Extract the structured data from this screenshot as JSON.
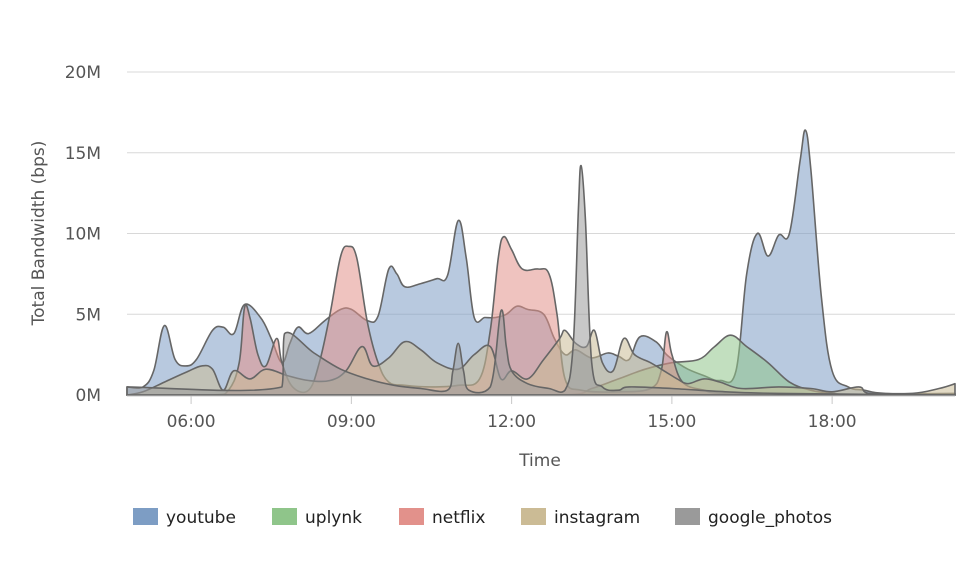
{
  "chart_data": {
    "type": "area",
    "title": "",
    "xlabel": "Time",
    "ylabel": "Total Bandwidth (bps)",
    "x_unit": "hours",
    "xlim": [
      4.8,
      20.3
    ],
    "ylim": [
      0,
      20
    ],
    "y_unit": "M",
    "x_ticks": [
      {
        "value": 6,
        "label": "06:00"
      },
      {
        "value": 9,
        "label": "09:00"
      },
      {
        "value": 12,
        "label": "12:00"
      },
      {
        "value": 15,
        "label": "15:00"
      },
      {
        "value": 18,
        "label": "18:00"
      }
    ],
    "y_ticks": [
      {
        "value": 0,
        "label": "0M"
      },
      {
        "value": 5,
        "label": "5M"
      },
      {
        "value": 10,
        "label": "10M"
      },
      {
        "value": 15,
        "label": "15M"
      },
      {
        "value": 20,
        "label": "20M"
      }
    ],
    "grid": true,
    "legend_position": "bottom",
    "series": [
      {
        "name": "youtube",
        "color": "#7d9dc4",
        "points": [
          [
            4.8,
            0.5
          ],
          [
            5.1,
            0.5
          ],
          [
            5.3,
            1.5
          ],
          [
            5.5,
            4.3
          ],
          [
            5.7,
            2.2
          ],
          [
            5.9,
            1.8
          ],
          [
            6.1,
            2.2
          ],
          [
            6.4,
            4.0
          ],
          [
            6.6,
            4.2
          ],
          [
            6.8,
            3.8
          ],
          [
            7.0,
            5.6
          ],
          [
            7.3,
            4.8
          ],
          [
            7.5,
            3.5
          ],
          [
            7.7,
            2.0
          ],
          [
            7.85,
            3.2
          ],
          [
            8.0,
            4.2
          ],
          [
            8.2,
            3.8
          ],
          [
            8.5,
            4.6
          ],
          [
            8.8,
            5.3
          ],
          [
            9.0,
            5.3
          ],
          [
            9.3,
            4.6
          ],
          [
            9.5,
            4.9
          ],
          [
            9.7,
            7.8
          ],
          [
            9.85,
            7.5
          ],
          [
            10.0,
            6.7
          ],
          [
            10.3,
            6.9
          ],
          [
            10.6,
            7.2
          ],
          [
            10.8,
            7.4
          ],
          [
            11.0,
            10.8
          ],
          [
            11.15,
            8.5
          ],
          [
            11.3,
            4.8
          ],
          [
            11.5,
            4.8
          ],
          [
            11.7,
            4.8
          ],
          [
            11.9,
            5.0
          ],
          [
            12.1,
            5.5
          ],
          [
            12.3,
            5.3
          ],
          [
            12.6,
            5.0
          ],
          [
            12.8,
            3.5
          ],
          [
            13.0,
            2.5
          ],
          [
            13.2,
            2.8
          ],
          [
            13.5,
            2.3
          ],
          [
            13.8,
            2.6
          ],
          [
            14.0,
            2.4
          ],
          [
            14.2,
            2.2
          ],
          [
            14.4,
            3.6
          ],
          [
            14.7,
            3.3
          ],
          [
            14.9,
            2.5
          ],
          [
            15.1,
            2.0
          ],
          [
            15.3,
            1.6
          ],
          [
            15.6,
            1.2
          ],
          [
            15.9,
            0.9
          ],
          [
            16.2,
            1.5
          ],
          [
            16.4,
            7.5
          ],
          [
            16.6,
            10.0
          ],
          [
            16.8,
            8.6
          ],
          [
            17.0,
            9.9
          ],
          [
            17.2,
            10.0
          ],
          [
            17.4,
            14.5
          ],
          [
            17.5,
            16.4
          ],
          [
            17.6,
            14.0
          ],
          [
            17.8,
            6.0
          ],
          [
            18.0,
            1.5
          ],
          [
            18.3,
            0.5
          ],
          [
            18.6,
            0.3
          ],
          [
            19.0,
            0.1
          ],
          [
            20.3,
            0.1
          ]
        ]
      },
      {
        "name": "uplynk",
        "color": "#8fc58a",
        "points": [
          [
            4.8,
            0.0
          ],
          [
            13.0,
            0.0
          ],
          [
            13.5,
            0.4
          ],
          [
            14.0,
            1.0
          ],
          [
            14.5,
            1.6
          ],
          [
            15.0,
            2.0
          ],
          [
            15.5,
            2.2
          ],
          [
            15.8,
            3.0
          ],
          [
            16.1,
            3.7
          ],
          [
            16.4,
            3.0
          ],
          [
            16.8,
            2.0
          ],
          [
            17.2,
            0.8
          ],
          [
            17.6,
            0.3
          ],
          [
            18.0,
            0.1
          ],
          [
            18.5,
            0.0
          ],
          [
            20.3,
            0.0
          ]
        ]
      },
      {
        "name": "netflix",
        "color": "#e2918b",
        "points": [
          [
            4.8,
            0.0
          ],
          [
            6.4,
            0.0
          ],
          [
            6.7,
            0.3
          ],
          [
            6.9,
            2.0
          ],
          [
            7.0,
            5.4
          ],
          [
            7.1,
            4.8
          ],
          [
            7.25,
            2.5
          ],
          [
            7.4,
            1.8
          ],
          [
            7.6,
            3.5
          ],
          [
            7.7,
            2.0
          ],
          [
            7.9,
            0.5
          ],
          [
            8.2,
            0.3
          ],
          [
            8.4,
            2.0
          ],
          [
            8.6,
            5.0
          ],
          [
            8.8,
            8.6
          ],
          [
            8.95,
            9.2
          ],
          [
            9.1,
            8.5
          ],
          [
            9.3,
            4.5
          ],
          [
            9.5,
            2.0
          ],
          [
            9.7,
            0.8
          ],
          [
            10.0,
            0.6
          ],
          [
            10.5,
            0.5
          ],
          [
            11.0,
            0.6
          ],
          [
            11.4,
            1.0
          ],
          [
            11.6,
            4.0
          ],
          [
            11.75,
            8.5
          ],
          [
            11.85,
            9.8
          ],
          [
            12.0,
            9.0
          ],
          [
            12.2,
            7.8
          ],
          [
            12.5,
            7.8
          ],
          [
            12.7,
            7.5
          ],
          [
            12.85,
            5.0
          ],
          [
            13.0,
            1.0
          ],
          [
            13.3,
            0.3
          ],
          [
            14.0,
            0.2
          ],
          [
            14.6,
            0.4
          ],
          [
            14.8,
            1.5
          ],
          [
            14.9,
            3.9
          ],
          [
            15.0,
            2.5
          ],
          [
            15.2,
            0.8
          ],
          [
            15.6,
            0.3
          ],
          [
            16.0,
            0.1
          ],
          [
            20.3,
            0.0
          ]
        ]
      },
      {
        "name": "instagram",
        "color": "#cbbb95",
        "points": [
          [
            4.8,
            0.0
          ],
          [
            5.1,
            0.2
          ],
          [
            5.5,
            0.8
          ],
          [
            5.9,
            1.4
          ],
          [
            6.2,
            1.8
          ],
          [
            6.4,
            1.6
          ],
          [
            6.6,
            0.3
          ],
          [
            6.8,
            1.5
          ],
          [
            7.1,
            1.0
          ],
          [
            7.4,
            1.6
          ],
          [
            7.8,
            1.2
          ],
          [
            8.2,
            0.9
          ],
          [
            8.6,
            0.9
          ],
          [
            8.9,
            1.5
          ],
          [
            9.2,
            3.0
          ],
          [
            9.4,
            1.8
          ],
          [
            9.7,
            2.3
          ],
          [
            10.0,
            3.3
          ],
          [
            10.3,
            2.8
          ],
          [
            10.6,
            2.0
          ],
          [
            11.0,
            1.6
          ],
          [
            11.3,
            2.5
          ],
          [
            11.6,
            3.0
          ],
          [
            11.8,
            1.0
          ],
          [
            12.0,
            1.5
          ],
          [
            12.3,
            1.0
          ],
          [
            12.6,
            2.2
          ],
          [
            12.9,
            3.5
          ],
          [
            13.0,
            4.0
          ],
          [
            13.2,
            3.2
          ],
          [
            13.4,
            3.0
          ],
          [
            13.55,
            4.0
          ],
          [
            13.7,
            2.0
          ],
          [
            13.9,
            1.5
          ],
          [
            14.1,
            3.5
          ],
          [
            14.3,
            2.5
          ],
          [
            14.6,
            2.0
          ],
          [
            14.9,
            1.4
          ],
          [
            15.1,
            1.0
          ],
          [
            15.3,
            0.7
          ],
          [
            15.6,
            1.0
          ],
          [
            15.9,
            0.8
          ],
          [
            16.3,
            0.4
          ],
          [
            17.0,
            0.5
          ],
          [
            17.6,
            0.4
          ],
          [
            18.0,
            0.2
          ],
          [
            18.5,
            0.5
          ],
          [
            18.7,
            0.1
          ],
          [
            19.5,
            0.1
          ],
          [
            20.0,
            0.4
          ],
          [
            20.3,
            0.7
          ]
        ]
      },
      {
        "name": "google_photos",
        "color": "#9a9a9a",
        "points": [
          [
            4.8,
            0.5
          ],
          [
            7.7,
            0.5
          ],
          [
            7.75,
            3.8
          ],
          [
            8.3,
            2.6
          ],
          [
            8.8,
            1.6
          ],
          [
            9.3,
            1.0
          ],
          [
            9.8,
            0.6
          ],
          [
            10.3,
            0.4
          ],
          [
            10.8,
            0.3
          ],
          [
            10.9,
            1.5
          ],
          [
            11.0,
            3.2
          ],
          [
            11.1,
            1.5
          ],
          [
            11.2,
            0.3
          ],
          [
            11.6,
            0.5
          ],
          [
            11.8,
            5.2
          ],
          [
            11.9,
            3.0
          ],
          [
            12.0,
            1.5
          ],
          [
            12.3,
            0.7
          ],
          [
            12.7,
            0.4
          ],
          [
            13.0,
            0.3
          ],
          [
            13.15,
            3.0
          ],
          [
            13.25,
            11.5
          ],
          [
            13.3,
            14.2
          ],
          [
            13.38,
            11.0
          ],
          [
            13.5,
            2.0
          ],
          [
            13.7,
            0.5
          ],
          [
            14.0,
            0.3
          ],
          [
            14.2,
            0.5
          ],
          [
            15.0,
            0.4
          ],
          [
            16.0,
            0.2
          ],
          [
            17.0,
            0.1
          ],
          [
            20.3,
            0.0
          ]
        ]
      }
    ]
  }
}
